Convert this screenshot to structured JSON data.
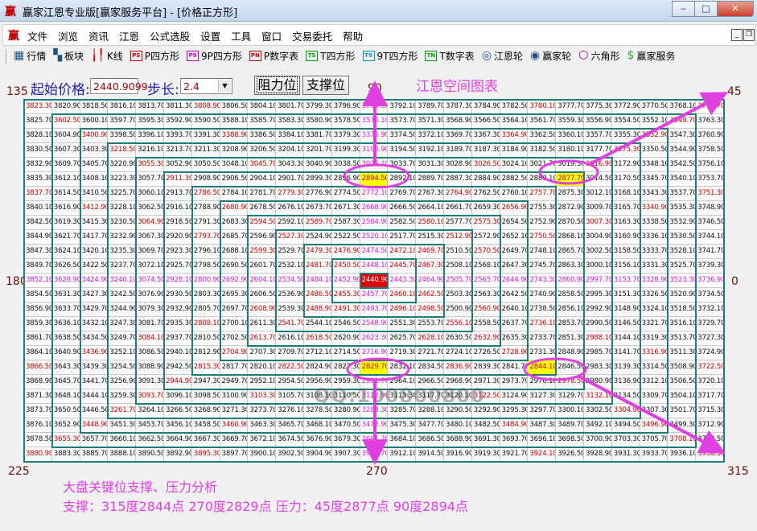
{
  "window": {
    "title": "赢家江恩专业版[赢家服务平台] - [价格正方形]",
    "logo_text": "赢",
    "buttons": {
      "minimize": "▭",
      "maximize": "□",
      "close": "✕"
    }
  },
  "menu": {
    "items": [
      "文件",
      "浏览",
      "资讯",
      "江恩",
      "公式选股",
      "设置",
      "工具",
      "窗口",
      "交易委托",
      "帮助"
    ]
  },
  "toolbar": {
    "items": [
      {
        "label": "行情",
        "icon": "table-icon",
        "glyph": "▦"
      },
      {
        "label": "板块",
        "icon": "blocks-icon",
        "glyph": "▚"
      },
      {
        "label": "K线",
        "icon": "candlestick-icon",
        "glyph": "╽╿"
      },
      {
        "label": "P四方形",
        "icon": "ps-icon",
        "glyph": "PS"
      },
      {
        "label": "9P四方形",
        "icon": "p9-icon",
        "glyph": "P9"
      },
      {
        "label": "P数字表",
        "icon": "pn-icon",
        "glyph": "PN"
      },
      {
        "label": "T四方形",
        "icon": "ts-icon",
        "glyph": "TS"
      },
      {
        "label": "9T四方形",
        "icon": "t9-icon",
        "glyph": "T9"
      },
      {
        "label": "T数字表",
        "icon": "tn-icon",
        "glyph": "TN"
      },
      {
        "label": "江恩轮",
        "icon": "gann-wheel-icon",
        "glyph": "◎"
      },
      {
        "label": "赢家轮",
        "icon": "winner-wheel-icon",
        "glyph": "◉"
      },
      {
        "label": "六角形",
        "icon": "hexagon-icon",
        "glyph": "⬡"
      },
      {
        "label": "赢家服务",
        "icon": "dollar-icon",
        "glyph": "$"
      }
    ]
  },
  "controls": {
    "start_price_label": "起始价格:",
    "start_price_value": "2440.9099",
    "step_label": "步长:",
    "step_value": "2.4",
    "resistance_button": "阻力位",
    "support_button": "支撑位",
    "chart_title": "江恩空间图表"
  },
  "angles": {
    "a135": "135",
    "a90": "90",
    "a45": "45",
    "a180": "180",
    "a0": "0",
    "a225": "225",
    "a270": "270",
    "a315": "315"
  },
  "colors": {
    "ring_border": "#1d7b7b",
    "diagonal_text": "#d00000",
    "axis_text": "#d81ed8",
    "center_bg": "#e00000",
    "highlight_bg": "#ffff00",
    "annotation": "#e040e0"
  },
  "highlights": [
    2894.5,
    2877.7,
    2829.7,
    2844.1
  ],
  "grid_rows": [
    [
      3823.3,
      3820.9,
      3818.5,
      3816.1,
      3813.7,
      3811.3,
      3808.9,
      3806.5,
      3804.1,
      3801.7,
      3799.3,
      3796.9,
      3794.5,
      3792.1,
      3789.7,
      3787.3,
      3784.9,
      3782.5,
      3780.1,
      3777.7,
      3775.3,
      3772.9,
      3770.5,
      3768.1,
      3765.7
    ],
    [
      3825.7,
      3602.5,
      3600.1,
      3597.7,
      3595.3,
      3592.9,
      3590.5,
      3588.1,
      3585.7,
      3583.3,
      3580.9,
      3578.5,
      3576.1,
      3573.7,
      3571.3,
      3568.9,
      3566.5,
      3564.1,
      3561.7,
      3559.3,
      3556.9,
      3554.5,
      3552.1,
      3549.7,
      3763.3
    ],
    [
      3828.1,
      3604.9,
      3400.9,
      3398.5,
      3396.1,
      3393.7,
      3391.3,
      3388.9,
      3386.5,
      3384.1,
      3381.7,
      3379.3,
      3376.9,
      3374.5,
      3372.1,
      3369.7,
      3367.3,
      3364.9,
      3362.5,
      3360.1,
      3357.7,
      3355.3,
      3352.9,
      3547.3,
      3760.9
    ],
    [
      3830.5,
      3607.3,
      3403.3,
      3218.5,
      3216.1,
      3213.7,
      3211.3,
      3208.9,
      3206.5,
      3204.1,
      3201.7,
      3199.3,
      3196.9,
      3194.5,
      3192.1,
      3189.7,
      3187.3,
      3184.9,
      3182.5,
      3180.1,
      3177.7,
      3175.3,
      3350.5,
      3544.9,
      3758.5
    ],
    [
      3832.9,
      3609.7,
      3405.7,
      3220.9,
      3055.3,
      3052.9,
      3050.5,
      3048.1,
      3045.7,
      3043.3,
      3040.9,
      3038.5,
      3036.1,
      3033.7,
      3031.3,
      3028.9,
      3026.5,
      3024.1,
      3021.7,
      3019.3,
      3016.9,
      3172.9,
      3348.1,
      3542.5,
      3756.1
    ],
    [
      3835.3,
      3612.1,
      3408.1,
      3223.3,
      3057.7,
      2911.3,
      2908.9,
      2906.5,
      2904.1,
      2901.7,
      2899.3,
      2896.9,
      2894.5,
      2892.1,
      2889.7,
      2887.3,
      2884.9,
      2882.5,
      2880.1,
      2877.7,
      3014.5,
      3170.5,
      3345.7,
      3540.1,
      3753.7
    ],
    [
      3837.7,
      3614.5,
      3410.5,
      3225.7,
      3060.1,
      2913.7,
      2786.5,
      2784.1,
      2781.7,
      2779.3,
      2776.9,
      2774.5,
      2772.1,
      2769.7,
      2767.3,
      2764.9,
      2762.5,
      2760.1,
      2757.7,
      2875.3,
      3012.1,
      3168.1,
      3343.3,
      3537.7,
      3751.3
    ],
    [
      3840.1,
      3616.9,
      3412.9,
      3228.1,
      3062.5,
      2916.1,
      2788.9,
      2680.9,
      2678.5,
      2676.1,
      2673.7,
      2671.3,
      2668.9,
      2666.5,
      2664.1,
      2661.7,
      2659.3,
      2656.9,
      2755.3,
      2872.9,
      3009.7,
      3165.7,
      3340.9,
      3535.3,
      3748.9
    ],
    [
      3842.5,
      3619.3,
      3415.3,
      3230.5,
      3064.9,
      2918.5,
      2791.3,
      2683.3,
      2594.5,
      2592.1,
      2589.7,
      2587.3,
      2584.9,
      2582.5,
      2580.1,
      2577.7,
      2575.3,
      2654.5,
      2752.9,
      2870.5,
      3007.3,
      3163.3,
      3338.5,
      3532.9,
      3746.5
    ],
    [
      3844.9,
      3621.7,
      3417.7,
      3232.9,
      3067.3,
      2920.9,
      2793.7,
      2685.7,
      2596.9,
      2527.3,
      2524.9,
      2522.5,
      2520.1,
      2517.7,
      2515.3,
      2512.9,
      2572.9,
      2652.1,
      2750.5,
      2868.1,
      3004.9,
      3160.9,
      3336.1,
      3530.5,
      3744.1
    ],
    [
      3847.3,
      3624.1,
      3420.1,
      3235.3,
      3069.7,
      2923.3,
      2796.1,
      2688.1,
      2599.3,
      2529.7,
      2479.3,
      2476.9,
      2474.5,
      2472.1,
      2469.7,
      2510.5,
      2570.5,
      2649.7,
      2748.1,
      2865.7,
      3002.5,
      3158.5,
      3333.7,
      3528.1,
      3741.7
    ],
    [
      3849.7,
      3626.5,
      3422.5,
      3237.7,
      3072.1,
      2925.7,
      2798.5,
      2690.5,
      2601.7,
      2532.1,
      2481.7,
      2450.5,
      2448.1,
      2445.7,
      2467.3,
      2508.1,
      2568.1,
      2647.3,
      2745.7,
      2863.3,
      3000.1,
      3156.1,
      3331.3,
      3525.7,
      3739.3
    ],
    [
      3852.1,
      3628.9,
      3424.9,
      3240.1,
      3074.5,
      2928.1,
      2800.9,
      2692.9,
      2604.1,
      2534.5,
      2484.1,
      2452.9,
      2440.9,
      2443.3,
      2464.9,
      2505.7,
      2565.7,
      2644.9,
      2743.3,
      2860.9,
      2997.7,
      3153.7,
      3328.9,
      3523.3,
      3736.9
    ],
    [
      3854.5,
      3631.3,
      3427.3,
      3242.5,
      3076.9,
      2930.5,
      2803.3,
      2695.3,
      2606.5,
      2536.9,
      2486.5,
      2455.3,
      2457.7,
      2460.1,
      2462.5,
      2503.3,
      2563.3,
      2642.5,
      2740.9,
      2858.5,
      2995.3,
      3151.3,
      3326.5,
      3520.9,
      3734.5
    ],
    [
      3856.9,
      3633.7,
      3429.7,
      3244.9,
      3079.3,
      2932.9,
      2805.7,
      2697.7,
      2608.9,
      2539.3,
      2488.9,
      2491.3,
      2493.7,
      2496.1,
      2498.5,
      2500.9,
      2560.9,
      2640.1,
      2738.5,
      2856.1,
      2992.9,
      3148.9,
      3324.1,
      3518.5,
      3732.1
    ],
    [
      3859.3,
      3636.1,
      3432.1,
      3247.3,
      3081.7,
      2935.3,
      2808.1,
      2700.1,
      2611.3,
      2541.7,
      2544.1,
      2546.5,
      2548.9,
      2551.3,
      2553.7,
      2556.1,
      2558.5,
      2637.7,
      2736.1,
      2853.7,
      2990.5,
      3146.5,
      3321.7,
      3516.1,
      3729.7
    ],
    [
      3861.7,
      3638.5,
      3434.5,
      3249.7,
      3084.1,
      2937.7,
      2810.5,
      2702.5,
      2613.7,
      2616.1,
      2618.5,
      2620.9,
      2623.3,
      2625.7,
      2628.1,
      2630.5,
      2632.9,
      2635.3,
      2733.7,
      2851.3,
      2988.1,
      3144.1,
      3319.3,
      3513.7,
      3727.3
    ],
    [
      3864.1,
      3640.9,
      3436.9,
      3252.1,
      3086.5,
      2940.1,
      2812.9,
      2704.9,
      2707.3,
      2709.7,
      2712.1,
      2714.5,
      2716.9,
      2719.3,
      2721.7,
      2724.1,
      2726.5,
      2728.9,
      2731.3,
      2848.9,
      2985.7,
      3141.7,
      3316.9,
      3511.3,
      3724.9
    ],
    [
      3866.5,
      3643.3,
      3439.3,
      3254.5,
      3088.9,
      2942.5,
      2815.3,
      2817.7,
      2820.1,
      2822.5,
      2824.9,
      2827.3,
      2829.7,
      2832.1,
      2834.5,
      2836.9,
      2839.3,
      2841.7,
      2844.1,
      2846.5,
      2983.3,
      3139.3,
      3314.5,
      3508.9,
      3722.5
    ],
    [
      3868.9,
      3645.7,
      3441.7,
      3256.9,
      3091.3,
      2944.9,
      2947.3,
      2949.7,
      2952.1,
      2954.5,
      2956.9,
      2959.3,
      2961.7,
      2964.1,
      2966.5,
      2968.9,
      2971.3,
      2973.7,
      2976.1,
      2978.5,
      2980.9,
      3136.9,
      3312.1,
      3506.5,
      3720.1
    ],
    [
      3871.3,
      3648.1,
      3444.1,
      3259.3,
      3093.7,
      3096.1,
      3098.5,
      3100.9,
      3103.3,
      3105.7,
      3108.1,
      3110.5,
      3112.9,
      3115.3,
      3117.7,
      3120.1,
      3122.5,
      3124.9,
      3127.3,
      3129.7,
      3132.1,
      3134.5,
      3309.7,
      3504.1,
      3717.7
    ],
    [
      3873.7,
      3650.5,
      3446.5,
      3261.7,
      3264.1,
      3266.5,
      3268.9,
      3271.3,
      3273.7,
      3276.1,
      3278.5,
      3280.9,
      3283.3,
      3285.7,
      3288.1,
      3290.5,
      3292.9,
      3295.3,
      3297.7,
      3300.1,
      3302.5,
      3304.9,
      3307.3,
      3501.7,
      3715.3
    ],
    [
      3876.1,
      3652.9,
      3448.9,
      3451.3,
      3453.7,
      3456.1,
      3458.5,
      3460.9,
      3463.3,
      3465.7,
      3468.1,
      3470.5,
      3472.9,
      3475.3,
      3477.7,
      3480.1,
      3482.5,
      3484.9,
      3487.3,
      3489.7,
      3492.1,
      3494.5,
      3496.9,
      3499.3,
      3712.9
    ],
    [
      3878.5,
      3655.3,
      3657.7,
      3660.1,
      3662.5,
      3664.9,
      3667.3,
      3669.7,
      3672.1,
      3674.5,
      3676.9,
      3679.3,
      3681.7,
      3684.1,
      3686.5,
      3688.9,
      3691.3,
      3693.7,
      3696.1,
      3698.5,
      3700.9,
      3703.3,
      3705.7,
      3708.1,
      3710.5
    ],
    [
      3880.9,
      3883.3,
      3885.7,
      3888.1,
      3890.5,
      3892.9,
      3895.3,
      3897.7,
      3900.1,
      3902.5,
      3904.9,
      3907.3,
      3909.7,
      3912.1,
      3914.5,
      3916.9,
      3919.3,
      3921.7,
      3924.1,
      3926.5,
      3928.9,
      3931.3,
      3933.7,
      3936.1,
      3938.5
    ]
  ],
  "watermark": "QQ:100800800",
  "analysis": {
    "heading": "大盘关键位支撑、压力分析",
    "detail": "支撑：315度2844点 270度2829点  压力：45度2877点 90度2894点"
  }
}
